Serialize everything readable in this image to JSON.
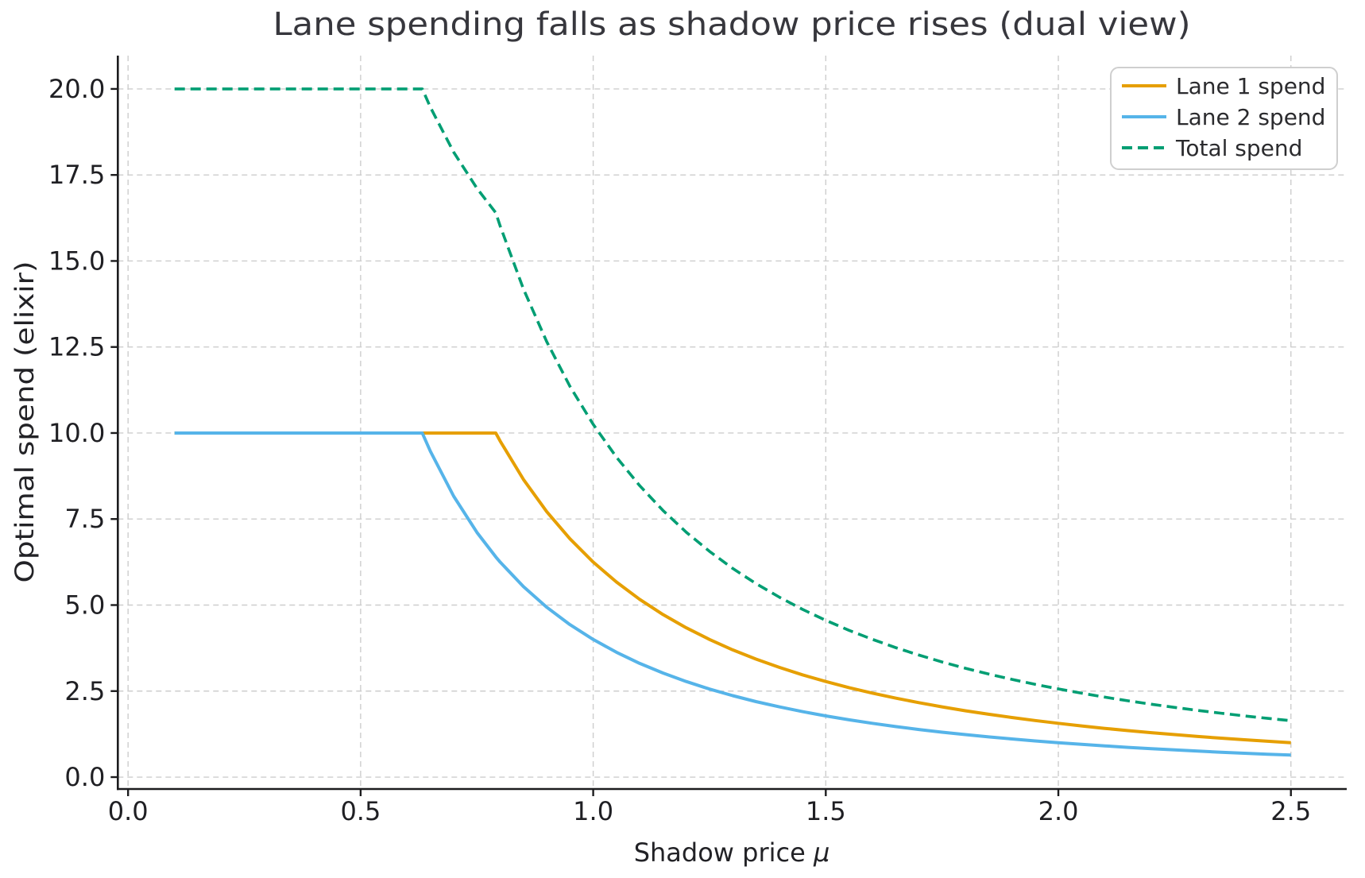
{
  "figure": {
    "background": "#ffffff"
  },
  "chart_data": {
    "type": "line",
    "title": "Lane spending falls as shadow price rises (dual view)",
    "xlabel": "Shadow price μ",
    "xlabel_parts": {
      "prefix": "Shadow price ",
      "symbol": "μ"
    },
    "ylabel": "Optimal spend (elixir)",
    "xlim": [
      -0.022,
      2.62
    ],
    "ylim": [
      -0.346,
      20.968
    ],
    "grid": true,
    "grid_style": "dashed",
    "legend_position": "upper right",
    "xticks": {
      "values": [
        0,
        0.5,
        1.0,
        1.5,
        2.0,
        2.5
      ],
      "labels": [
        "0.0",
        "0.5",
        "1.0",
        "1.5",
        "2.0",
        "2.5"
      ]
    },
    "yticks": {
      "values": [
        0,
        2.5,
        5.0,
        7.5,
        10.0,
        12.5,
        15.0,
        17.5,
        20.0
      ],
      "labels": [
        "0.0",
        "2.5",
        "5.0",
        "7.5",
        "10.0",
        "12.5",
        "15.0",
        "17.5",
        "20.0"
      ]
    },
    "x": [
      0.1,
      0.2,
      0.3,
      0.4,
      0.5,
      0.6,
      0.6325,
      0.65,
      0.7,
      0.75,
      0.7906,
      0.8,
      0.85,
      0.9,
      0.95,
      1.0,
      1.05,
      1.1,
      1.15,
      1.2,
      1.25,
      1.3,
      1.35,
      1.4,
      1.45,
      1.5,
      1.55,
      1.6,
      1.65,
      1.7,
      1.75,
      1.8,
      1.85,
      1.9,
      1.95,
      2.0,
      2.05,
      2.1,
      2.15,
      2.2,
      2.25,
      2.3,
      2.35,
      2.4,
      2.45,
      2.5
    ],
    "series": [
      {
        "name": "Lane 1 spend",
        "color": "#E69F00",
        "style": "solid",
        "formula": "min(10, 6.25/mu^2)",
        "values": [
          10,
          10,
          10,
          10,
          10,
          10,
          10,
          10,
          10,
          10,
          10,
          9.766,
          8.651,
          7.716,
          6.925,
          6.25,
          5.669,
          5.165,
          4.726,
          4.34,
          4.0,
          3.698,
          3.429,
          3.189,
          2.973,
          2.778,
          2.601,
          2.441,
          2.296,
          2.163,
          2.041,
          1.929,
          1.826,
          1.732,
          1.644,
          1.563,
          1.487,
          1.417,
          1.352,
          1.291,
          1.235,
          1.181,
          1.132,
          1.085,
          1.041,
          1.0
        ]
      },
      {
        "name": "Lane 2 spend",
        "color": "#56B4E9",
        "style": "solid",
        "formula": "min(10, 4/mu^2)",
        "values": [
          10,
          10,
          10,
          10,
          10,
          10,
          10,
          9.467,
          8.163,
          7.111,
          6.4,
          6.25,
          5.536,
          4.938,
          4.432,
          4.0,
          3.628,
          3.306,
          3.025,
          2.778,
          2.56,
          2.367,
          2.195,
          2.041,
          1.903,
          1.778,
          1.665,
          1.563,
          1.469,
          1.384,
          1.306,
          1.235,
          1.169,
          1.108,
          1.052,
          1.0,
          0.952,
          0.907,
          0.865,
          0.826,
          0.79,
          0.756,
          0.724,
          0.694,
          0.666,
          0.64
        ]
      },
      {
        "name": "Total spend",
        "color": "#009E73",
        "style": "dashed",
        "formula": "lane1 + lane2",
        "values": [
          20,
          20,
          20,
          20,
          20,
          20,
          20,
          19.467,
          18.163,
          17.111,
          16.4,
          16.016,
          14.187,
          12.654,
          11.357,
          10.25,
          9.297,
          8.471,
          7.75,
          7.118,
          6.56,
          6.065,
          5.624,
          5.23,
          4.875,
          4.556,
          4.266,
          4.004,
          3.765,
          3.547,
          3.347,
          3.164,
          2.995,
          2.84,
          2.696,
          2.563,
          2.439,
          2.324,
          2.217,
          2.117,
          2.025,
          1.937,
          1.856,
          1.779,
          1.707,
          1.64
        ]
      }
    ],
    "colors": {
      "lane1": "#E69F00",
      "lane2": "#56B4E9",
      "total": "#009E73",
      "grid": "#cdcdcd",
      "spine": "#1c1c1e",
      "background": "#ffffff"
    }
  }
}
